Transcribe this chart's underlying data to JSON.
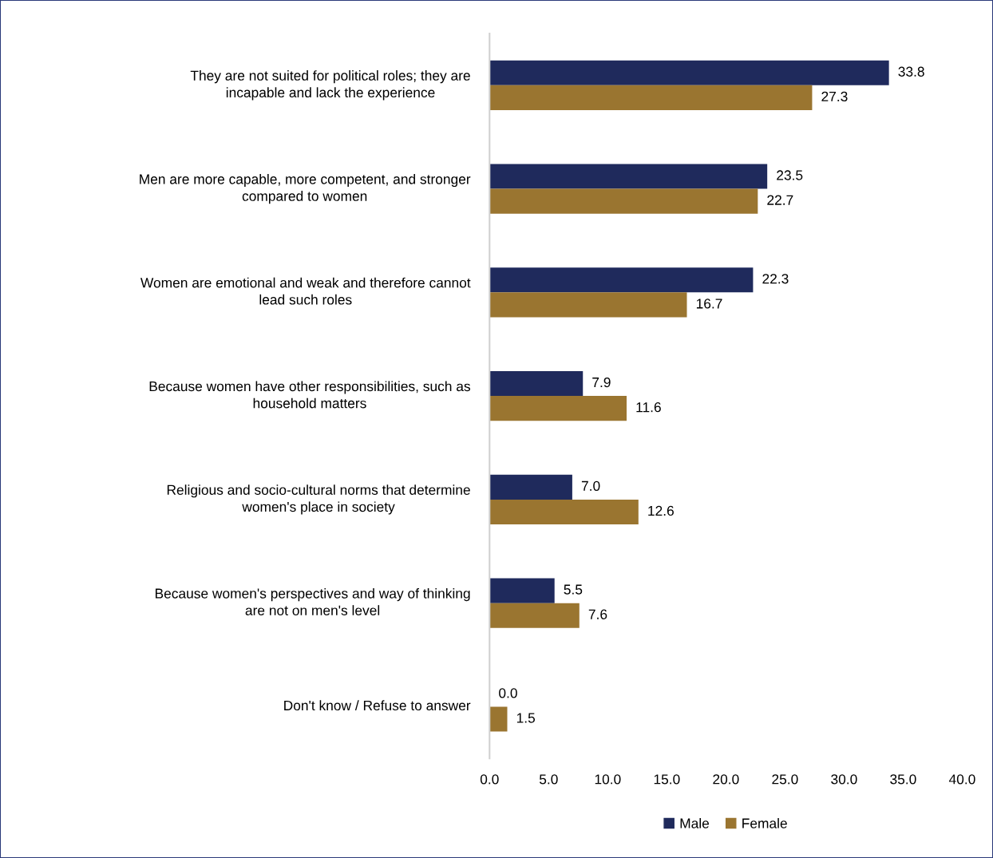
{
  "chart_data": {
    "type": "bar",
    "orientation": "horizontal",
    "categories": [
      "They are not suited for political roles; they are incapable and lack the experience",
      "Men are more capable, more competent, and stronger compared to women",
      "Women are emotional and weak and therefore cannot lead such roles",
      "Because women have other responsibilities, such as household matters",
      "Religious and socio-cultural norms that determine women's place in society",
      "Because women's perspectives and way of thinking are not on men's level",
      "Don't know / Refuse to answer"
    ],
    "series": [
      {
        "name": "Male",
        "color": "#1f2a5c",
        "values": [
          33.8,
          23.5,
          22.3,
          7.9,
          7.0,
          5.5,
          0.0
        ],
        "value_labels": [
          "33.8",
          "23.5",
          "22.3",
          "7.9",
          "7.0",
          "5.5",
          "0.0"
        ]
      },
      {
        "name": "Female",
        "color": "#9a7530",
        "values": [
          27.3,
          22.7,
          16.7,
          11.6,
          12.6,
          7.6,
          1.5
        ],
        "value_labels": [
          "27.3",
          "22.7",
          "16.7",
          "11.6",
          "12.6",
          "7.6",
          "1.5"
        ]
      }
    ],
    "xlim": [
      0,
      40
    ],
    "xticks": [
      {
        "value": 0,
        "label": "0.0"
      },
      {
        "value": 5,
        "label": "5.0"
      },
      {
        "value": 10,
        "label": "10.0"
      },
      {
        "value": 15,
        "label": "15.0"
      },
      {
        "value": 20,
        "label": "20.0"
      },
      {
        "value": 25,
        "label": "25.0"
      },
      {
        "value": 30,
        "label": "30.0"
      },
      {
        "value": 35,
        "label": "35.0"
      },
      {
        "value": 40,
        "label": "40.0"
      }
    ],
    "grid": false,
    "legend": "bottom"
  }
}
